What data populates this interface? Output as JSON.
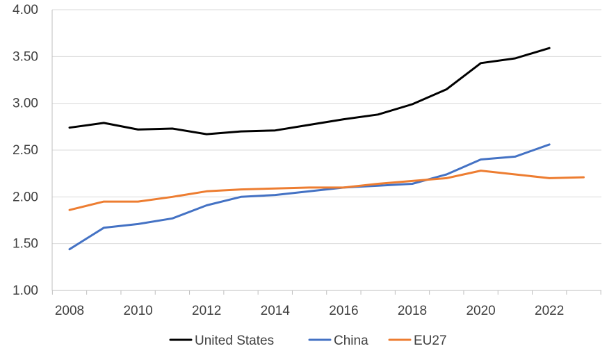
{
  "chart_data": {
    "type": "line",
    "title": "",
    "xlabel": "",
    "ylabel": "",
    "ylim": [
      1.0,
      4.0
    ],
    "y_ticks": [
      "1.00",
      "1.50",
      "2.00",
      "2.50",
      "3.00",
      "3.50",
      "4.00"
    ],
    "y_tick_values": [
      1.0,
      1.5,
      2.0,
      2.5,
      3.0,
      3.5,
      4.0
    ],
    "x": [
      2008,
      2009,
      2010,
      2011,
      2012,
      2013,
      2014,
      2015,
      2016,
      2017,
      2018,
      2019,
      2020,
      2021,
      2022,
      2023
    ],
    "x_tick_labels": [
      "2008",
      "2010",
      "2012",
      "2014",
      "2016",
      "2018",
      "2020",
      "2022"
    ],
    "grid": true,
    "legend_position": "bottom",
    "series": [
      {
        "name": "United States",
        "color": "#000000",
        "values": [
          2.74,
          2.79,
          2.72,
          2.73,
          2.67,
          2.7,
          2.71,
          2.77,
          2.83,
          2.88,
          2.99,
          3.15,
          3.43,
          3.48,
          3.59,
          null
        ]
      },
      {
        "name": "China",
        "color": "#4472C4",
        "values": [
          1.44,
          1.67,
          1.71,
          1.77,
          1.91,
          2.0,
          2.02,
          2.06,
          2.1,
          2.12,
          2.14,
          2.24,
          2.4,
          2.43,
          2.56,
          null
        ]
      },
      {
        "name": "EU27",
        "color": "#ED7D31",
        "values": [
          1.86,
          1.95,
          1.95,
          2.0,
          2.06,
          2.08,
          2.09,
          2.1,
          2.1,
          2.14,
          2.17,
          2.2,
          2.28,
          2.24,
          2.2,
          2.21
        ]
      }
    ]
  }
}
